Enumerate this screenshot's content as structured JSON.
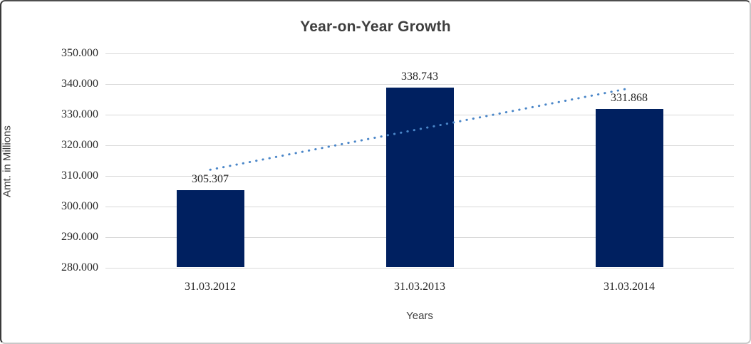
{
  "chart_data": {
    "type": "bar",
    "title": "Year-on-Year Growth",
    "xlabel": "Years",
    "ylabel": "Amt. in Millions",
    "categories": [
      "31.03.2012",
      "31.03.2013",
      "31.03.2014"
    ],
    "values": [
      305.307,
      338.743,
      331.868
    ],
    "value_labels": [
      "305.307",
      "338.743",
      "331.868"
    ],
    "ylim": [
      280,
      350
    ],
    "ytick_step": 10,
    "ytick_labels": [
      "350.000",
      "340.000",
      "330.000",
      "320.000",
      "310.000",
      "300.000",
      "290.000",
      "280.000"
    ],
    "grid": true,
    "legend": "none",
    "trendline": {
      "type": "linear",
      "style": "dotted"
    },
    "colors": {
      "bar": "#002060",
      "trendline": "#4a86c8",
      "gridline": "#d9d9d9",
      "title_text": "#3f3f3f",
      "tick_text": "#262626"
    }
  }
}
